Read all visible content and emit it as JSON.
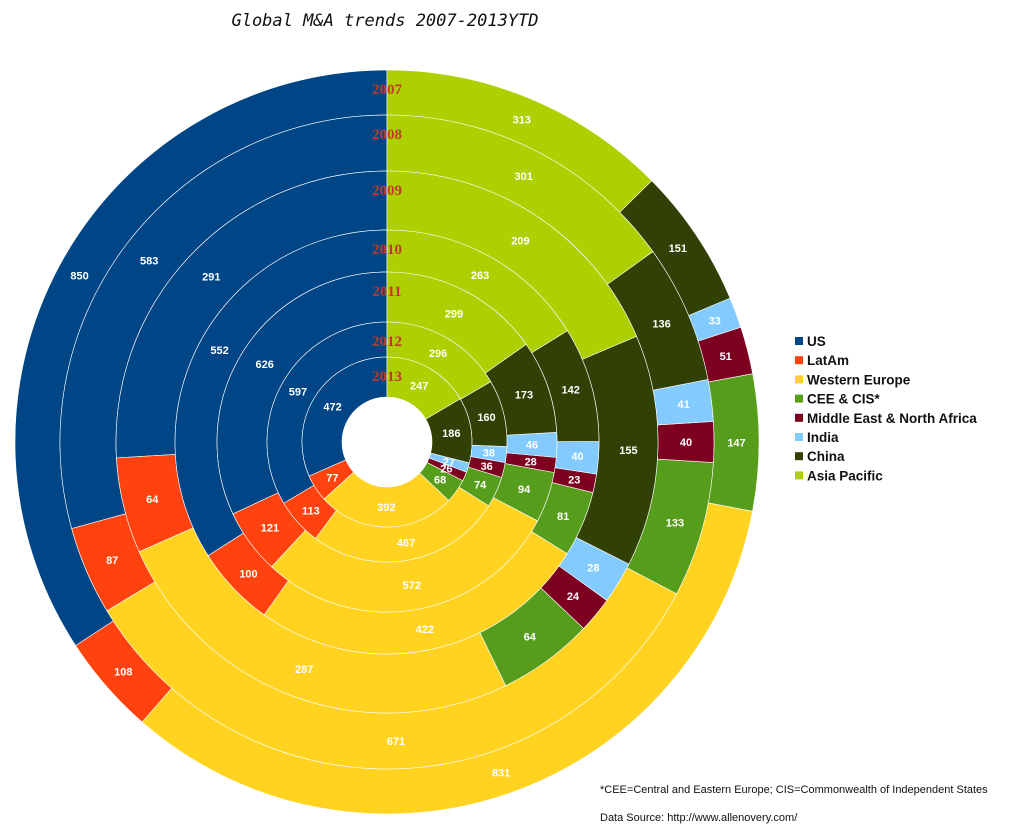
{
  "chart_data": {
    "type": "radial_stacked_bar",
    "title": "Global M&A trends 2007-2013YTD",
    "footnote": "*CEE=Central and Eastern Europe; CIS=Commonwealth of Independent States",
    "source": "Data Source: http://www.allenovery.com/",
    "categories": [
      "2007",
      "2008",
      "2009",
      "2010",
      "2011",
      "2012",
      "2013"
    ],
    "series": [
      {
        "name": "US",
        "color": "#004586",
        "values": [
          850,
          583,
          291,
          552,
          626,
          597,
          472
        ]
      },
      {
        "name": "LatAm",
        "color": "#ff420e",
        "values": [
          108,
          87,
          64,
          100,
          121,
          113,
          77
        ]
      },
      {
        "name": "Western Europe",
        "color": "#ffd320",
        "values": [
          831,
          671,
          287,
          422,
          572,
          467,
          392
        ]
      },
      {
        "name": "CEE & CIS*",
        "color": "#579d1c",
        "values": [
          147,
          133,
          64,
          81,
          94,
          74,
          68
        ]
      },
      {
        "name": "Middle East & North Africa",
        "color": "#7e0021",
        "values": [
          51,
          40,
          24,
          23,
          28,
          36,
          26
        ]
      },
      {
        "name": "India",
        "color": "#83caff",
        "values": [
          33,
          41,
          28,
          40,
          46,
          38,
          27
        ]
      },
      {
        "name": "China",
        "color": "#314004",
        "values": [
          151,
          136,
          155,
          142,
          173,
          160,
          186
        ]
      },
      {
        "name": "Asia Pacific",
        "color": "#aecf00",
        "values": [
          313,
          301,
          209,
          263,
          299,
          296,
          247
        ]
      }
    ]
  }
}
